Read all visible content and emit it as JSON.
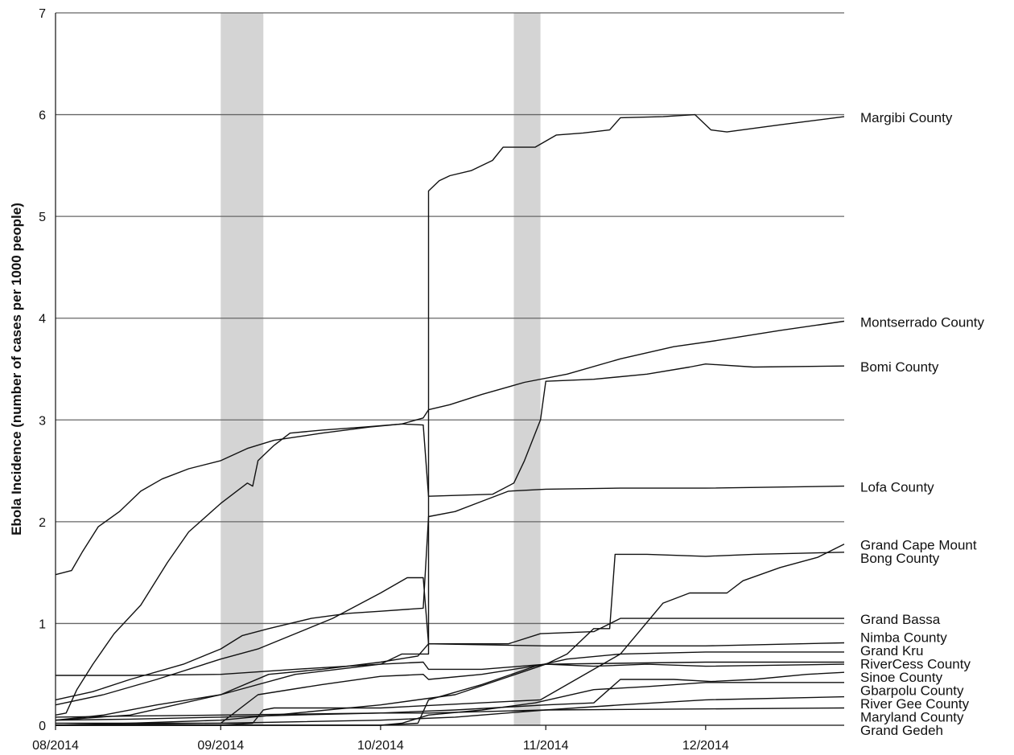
{
  "chart_data": {
    "type": "line",
    "title": "",
    "xlabel": "",
    "ylabel": "Ebola Incidence (number of cases per 1000 people)",
    "x_range": [
      "2014-08-01",
      "2014-12-27"
    ],
    "ylim": [
      0,
      7
    ],
    "y_ticks": [
      0,
      1,
      2,
      3,
      4,
      5,
      6,
      7
    ],
    "x_ticks": [
      {
        "date": "2014-08-01",
        "label": "08/2014"
      },
      {
        "date": "2014-09-01",
        "label": "09/2014"
      },
      {
        "date": "2014-10-01",
        "label": "10/2014"
      },
      {
        "date": "2014-11-01",
        "label": "11/2014"
      },
      {
        "date": "2014-12-01",
        "label": "12/2014"
      }
    ],
    "grid": {
      "horizontal": true,
      "vertical": false
    },
    "line_color": "#111111",
    "shade_color": "#d4d4d4",
    "shaded_ranges": [
      {
        "start": "2014-09-01",
        "end": "2014-09-09"
      },
      {
        "start": "2014-10-26",
        "end": "2014-10-31"
      }
    ],
    "legend": "direct labels at right end of lines",
    "series": [
      {
        "name": "Margibi County",
        "points": [
          [
            "2014-08-01",
            0.05
          ],
          [
            "2014-08-15",
            0.1
          ],
          [
            "2014-09-01",
            0.3
          ],
          [
            "2014-09-15",
            0.5
          ],
          [
            "2014-10-01",
            0.6
          ],
          [
            "2014-10-05",
            0.7
          ],
          [
            "2014-10-10",
            0.7
          ],
          [
            "2014-10-10",
            5.25
          ],
          [
            "2014-10-12",
            5.35
          ],
          [
            "2014-10-14",
            5.4
          ],
          [
            "2014-10-18",
            5.45
          ],
          [
            "2014-10-22",
            5.55
          ],
          [
            "2014-10-24",
            5.68
          ],
          [
            "2014-10-30",
            5.68
          ],
          [
            "2014-11-03",
            5.8
          ],
          [
            "2014-11-08",
            5.82
          ],
          [
            "2014-11-13",
            5.85
          ],
          [
            "2014-11-15",
            5.97
          ],
          [
            "2014-11-23",
            5.98
          ],
          [
            "2014-11-29",
            6.0
          ],
          [
            "2014-12-02",
            5.85
          ],
          [
            "2014-12-05",
            5.83
          ],
          [
            "2014-12-15",
            5.9
          ],
          [
            "2014-12-27",
            5.98
          ]
        ]
      },
      {
        "name": "Montserrado County",
        "points": [
          [
            "2014-08-01",
            1.48
          ],
          [
            "2014-08-04",
            1.52
          ],
          [
            "2014-08-06",
            1.7
          ],
          [
            "2014-08-09",
            1.95
          ],
          [
            "2014-08-13",
            2.1
          ],
          [
            "2014-08-17",
            2.3
          ],
          [
            "2014-08-21",
            2.42
          ],
          [
            "2014-08-26",
            2.52
          ],
          [
            "2014-09-01",
            2.6
          ],
          [
            "2014-09-06",
            2.72
          ],
          [
            "2014-09-11",
            2.8
          ],
          [
            "2014-09-20",
            2.87
          ],
          [
            "2014-09-29",
            2.93
          ],
          [
            "2014-10-05",
            2.96
          ],
          [
            "2014-10-09",
            3.02
          ],
          [
            "2014-10-10",
            3.1
          ],
          [
            "2014-10-14",
            3.15
          ],
          [
            "2014-10-20",
            3.25
          ],
          [
            "2014-10-28",
            3.37
          ],
          [
            "2014-11-05",
            3.45
          ],
          [
            "2014-11-15",
            3.6
          ],
          [
            "2014-11-25",
            3.72
          ],
          [
            "2014-12-03",
            3.78
          ],
          [
            "2014-12-15",
            3.88
          ],
          [
            "2014-12-27",
            3.97
          ]
        ]
      },
      {
        "name": "Bomi County",
        "points": [
          [
            "2014-08-01",
            0.1
          ],
          [
            "2014-08-03",
            0.12
          ],
          [
            "2014-08-05",
            0.35
          ],
          [
            "2014-08-08",
            0.6
          ],
          [
            "2014-08-12",
            0.9
          ],
          [
            "2014-08-17",
            1.18
          ],
          [
            "2014-08-22",
            1.6
          ],
          [
            "2014-08-26",
            1.9
          ],
          [
            "2014-09-01",
            2.18
          ],
          [
            "2014-09-04",
            2.3
          ],
          [
            "2014-09-06",
            2.38
          ],
          [
            "2014-09-07",
            2.35
          ],
          [
            "2014-09-08",
            2.6
          ],
          [
            "2014-09-11",
            2.75
          ],
          [
            "2014-09-14",
            2.87
          ],
          [
            "2014-09-20",
            2.9
          ],
          [
            "2014-09-28",
            2.93
          ],
          [
            "2014-10-05",
            2.96
          ],
          [
            "2014-10-09",
            2.95
          ],
          [
            "2014-10-10",
            2.25
          ],
          [
            "2014-10-16",
            2.26
          ],
          [
            "2014-10-22",
            2.27
          ],
          [
            "2014-10-26",
            2.38
          ],
          [
            "2014-10-28",
            2.6
          ],
          [
            "2014-10-31",
            3.0
          ],
          [
            "2014-11-01",
            3.38
          ],
          [
            "2014-11-10",
            3.4
          ],
          [
            "2014-11-20",
            3.45
          ],
          [
            "2014-11-28",
            3.52
          ],
          [
            "2014-12-01",
            3.55
          ],
          [
            "2014-12-10",
            3.52
          ],
          [
            "2014-12-27",
            3.53
          ]
        ]
      },
      {
        "name": "Lofa County",
        "points": [
          [
            "2014-08-01",
            0.25
          ],
          [
            "2014-08-08",
            0.33
          ],
          [
            "2014-08-15",
            0.45
          ],
          [
            "2014-08-25",
            0.6
          ],
          [
            "2014-09-01",
            0.75
          ],
          [
            "2014-09-05",
            0.88
          ],
          [
            "2014-09-10",
            0.95
          ],
          [
            "2014-09-18",
            1.05
          ],
          [
            "2014-09-25",
            1.1
          ],
          [
            "2014-10-01",
            1.12
          ],
          [
            "2014-10-09",
            1.15
          ],
          [
            "2014-10-10",
            2.05
          ],
          [
            "2014-10-15",
            2.1
          ],
          [
            "2014-10-20",
            2.2
          ],
          [
            "2014-10-25",
            2.3
          ],
          [
            "2014-11-01",
            2.32
          ],
          [
            "2014-11-15",
            2.33
          ],
          [
            "2014-12-01",
            2.33
          ],
          [
            "2014-12-27",
            2.35
          ]
        ]
      },
      {
        "name": "Grand Cape Mount",
        "points": [
          [
            "2014-08-01",
            0.0
          ],
          [
            "2014-09-01",
            0.0
          ],
          [
            "2014-09-07",
            0.02
          ],
          [
            "2014-09-09",
            0.15
          ],
          [
            "2014-09-11",
            0.17
          ],
          [
            "2014-10-01",
            0.17
          ],
          [
            "2014-10-31",
            0.25
          ],
          [
            "2014-11-15",
            0.7
          ],
          [
            "2014-11-23",
            1.2
          ],
          [
            "2014-11-28",
            1.3
          ],
          [
            "2014-12-05",
            1.3
          ],
          [
            "2014-12-08",
            1.42
          ],
          [
            "2014-12-15",
            1.55
          ],
          [
            "2014-12-22",
            1.65
          ],
          [
            "2014-12-27",
            1.78
          ]
        ]
      },
      {
        "name": "Bong County",
        "points": [
          [
            "2014-08-01",
            0.0
          ],
          [
            "2014-08-15",
            0.02
          ],
          [
            "2014-09-01",
            0.05
          ],
          [
            "2014-10-01",
            0.2
          ],
          [
            "2014-10-15",
            0.3
          ],
          [
            "2014-11-01",
            0.6
          ],
          [
            "2014-11-05",
            0.7
          ],
          [
            "2014-11-07",
            0.8
          ],
          [
            "2014-11-10",
            0.95
          ],
          [
            "2014-11-13",
            0.95
          ],
          [
            "2014-11-14",
            1.68
          ],
          [
            "2014-11-20",
            1.68
          ],
          [
            "2014-12-01",
            1.66
          ],
          [
            "2014-12-10",
            1.68
          ],
          [
            "2014-12-27",
            1.7
          ]
        ]
      },
      {
        "name": "Grand Bassa",
        "points": [
          [
            "2014-08-01",
            0.2
          ],
          [
            "2014-08-10",
            0.3
          ],
          [
            "2014-08-20",
            0.45
          ],
          [
            "2014-09-01",
            0.65
          ],
          [
            "2014-09-08",
            0.75
          ],
          [
            "2014-09-15",
            0.9
          ],
          [
            "2014-09-22",
            1.05
          ],
          [
            "2014-10-01",
            1.3
          ],
          [
            "2014-10-06",
            1.45
          ],
          [
            "2014-10-09",
            1.45
          ],
          [
            "2014-10-10",
            0.8
          ],
          [
            "2014-10-20",
            0.8
          ],
          [
            "2014-10-25",
            0.8
          ],
          [
            "2014-10-31",
            0.9
          ],
          [
            "2014-11-10",
            0.92
          ],
          [
            "2014-11-15",
            1.05
          ],
          [
            "2014-12-01",
            1.05
          ],
          [
            "2014-12-27",
            1.05
          ]
        ]
      },
      {
        "name": "Nimba County",
        "points": [
          [
            "2014-08-01",
            0.05
          ],
          [
            "2014-08-10",
            0.1
          ],
          [
            "2014-08-20",
            0.2
          ],
          [
            "2014-09-01",
            0.3
          ],
          [
            "2014-09-10",
            0.5
          ],
          [
            "2014-09-20",
            0.55
          ],
          [
            "2014-10-01",
            0.62
          ],
          [
            "2014-10-08",
            0.68
          ],
          [
            "2014-10-10",
            0.8
          ],
          [
            "2014-11-01",
            0.78
          ],
          [
            "2014-11-15",
            0.78
          ],
          [
            "2014-12-01",
            0.78
          ],
          [
            "2014-12-27",
            0.81
          ]
        ]
      },
      {
        "name": "Grand Kru",
        "points": [
          [
            "2014-08-01",
            0.0
          ],
          [
            "2014-09-01",
            0.0
          ],
          [
            "2014-10-01",
            0.0
          ],
          [
            "2014-10-08",
            0.02
          ],
          [
            "2014-10-10",
            0.25
          ],
          [
            "2014-10-20",
            0.4
          ],
          [
            "2014-10-30",
            0.58
          ],
          [
            "2014-11-05",
            0.65
          ],
          [
            "2014-11-15",
            0.7
          ],
          [
            "2014-12-01",
            0.72
          ],
          [
            "2014-12-27",
            0.72
          ]
        ]
      },
      {
        "name": "RiverCess County",
        "points": [
          [
            "2014-08-01",
            0.49
          ],
          [
            "2014-08-15",
            0.49
          ],
          [
            "2014-09-01",
            0.5
          ],
          [
            "2014-09-15",
            0.55
          ],
          [
            "2014-10-01",
            0.6
          ],
          [
            "2014-10-09",
            0.62
          ],
          [
            "2014-10-10",
            0.55
          ],
          [
            "2014-10-20",
            0.55
          ],
          [
            "2014-11-01",
            0.6
          ],
          [
            "2014-12-01",
            0.62
          ],
          [
            "2014-12-27",
            0.62
          ]
        ]
      },
      {
        "name": "Sinoe County",
        "points": [
          [
            "2014-08-01",
            0.0
          ],
          [
            "2014-09-01",
            0.02
          ],
          [
            "2014-09-08",
            0.3
          ],
          [
            "2014-09-20",
            0.4
          ],
          [
            "2014-10-01",
            0.48
          ],
          [
            "2014-10-09",
            0.5
          ],
          [
            "2014-10-10",
            0.45
          ],
          [
            "2014-10-20",
            0.5
          ],
          [
            "2014-11-01",
            0.6
          ],
          [
            "2014-11-10",
            0.58
          ],
          [
            "2014-11-20",
            0.6
          ],
          [
            "2014-12-01",
            0.58
          ],
          [
            "2014-12-27",
            0.6
          ]
        ]
      },
      {
        "name": "Gbarpolu County",
        "points": [
          [
            "2014-08-01",
            0.05
          ],
          [
            "2014-08-15",
            0.06
          ],
          [
            "2014-09-01",
            0.08
          ],
          [
            "2014-09-15",
            0.1
          ],
          [
            "2014-10-01",
            0.12
          ],
          [
            "2014-10-15",
            0.15
          ],
          [
            "2014-11-01",
            0.2
          ],
          [
            "2014-11-10",
            0.22
          ],
          [
            "2014-11-15",
            0.45
          ],
          [
            "2014-11-25",
            0.45
          ],
          [
            "2014-12-02",
            0.43
          ],
          [
            "2014-12-10",
            0.45
          ],
          [
            "2014-12-20",
            0.5
          ],
          [
            "2014-12-27",
            0.52
          ]
        ]
      },
      {
        "name": "River Gee County",
        "points": [
          [
            "2014-08-01",
            0.0
          ],
          [
            "2014-09-01",
            0.0
          ],
          [
            "2014-10-01",
            0.0
          ],
          [
            "2014-10-05",
            0.02
          ],
          [
            "2014-10-10",
            0.1
          ],
          [
            "2014-10-20",
            0.15
          ],
          [
            "2014-10-30",
            0.22
          ],
          [
            "2014-11-10",
            0.35
          ],
          [
            "2014-11-20",
            0.38
          ],
          [
            "2014-12-01",
            0.42
          ],
          [
            "2014-12-27",
            0.42
          ]
        ]
      },
      {
        "name": "Maryland County",
        "points": [
          [
            "2014-08-01",
            0.02
          ],
          [
            "2014-08-15",
            0.02
          ],
          [
            "2014-09-01",
            0.02
          ],
          [
            "2014-10-01",
            0.05
          ],
          [
            "2014-10-15",
            0.08
          ],
          [
            "2014-11-01",
            0.15
          ],
          [
            "2014-11-15",
            0.2
          ],
          [
            "2014-12-01",
            0.25
          ],
          [
            "2014-12-27",
            0.28
          ]
        ]
      },
      {
        "name": "Grand Gedeh",
        "points": [
          [
            "2014-08-01",
            0.08
          ],
          [
            "2014-08-15",
            0.09
          ],
          [
            "2014-09-01",
            0.1
          ],
          [
            "2014-10-01",
            0.12
          ],
          [
            "2014-10-10",
            0.12
          ],
          [
            "2014-11-01",
            0.15
          ],
          [
            "2014-12-01",
            0.16
          ],
          [
            "2014-12-27",
            0.17
          ]
        ]
      }
    ],
    "label_order": [
      "Margibi County",
      "Montserrado County",
      "Bomi County",
      "Lofa County",
      "Grand Cape Mount",
      "Bong County",
      "Grand Bassa",
      "Nimba County",
      "Grand Kru",
      "RiverCess County",
      "Sinoe County",
      "Gbarpolu County",
      "River Gee County",
      "Maryland County",
      "Grand Gedeh"
    ]
  }
}
